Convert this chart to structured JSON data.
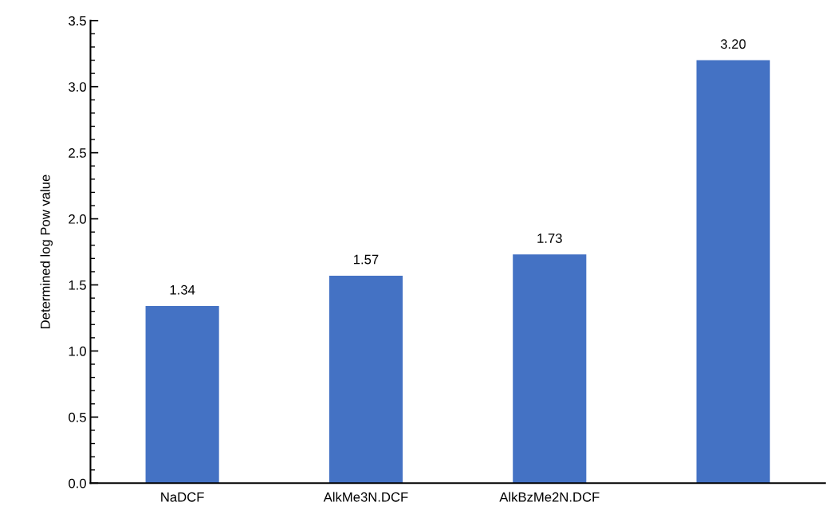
{
  "chart_data": {
    "type": "bar",
    "ylabel": "Determined log Pow value",
    "categories": [
      "NaDCF",
      "AlkMe3N.DCF",
      "AlkBzMe2N.DCF",
      null
    ],
    "values": [
      1.34,
      1.57,
      1.73,
      3.2
    ],
    "value_labels": [
      "1.34",
      "1.57",
      "1.73",
      "3.20"
    ],
    "color": "#4472c4",
    "ylim": [
      0,
      3.5
    ],
    "yticks": [
      {
        "value": 0,
        "label": "0.0"
      },
      {
        "value": 0.1,
        "label": null
      },
      {
        "value": 0.2,
        "label": null
      },
      {
        "value": 0.3,
        "label": null
      },
      {
        "value": 0.4,
        "label": null
      },
      {
        "value": 0.5,
        "label": "0.5"
      },
      {
        "value": 0.6,
        "label": null
      },
      {
        "value": 0.7,
        "label": null
      },
      {
        "value": 0.8,
        "label": null
      },
      {
        "value": 0.9,
        "label": null
      },
      {
        "value": 1.0,
        "label": "1.0"
      },
      {
        "value": 1.1,
        "label": null
      },
      {
        "value": 1.2,
        "label": null
      },
      {
        "value": 1.3,
        "label": null
      },
      {
        "value": 1.4,
        "label": null
      },
      {
        "value": 1.5,
        "label": "1.5"
      },
      {
        "value": 1.6,
        "label": null
      },
      {
        "value": 1.7,
        "label": null
      },
      {
        "value": 1.8,
        "label": null
      },
      {
        "value": 1.9,
        "label": null
      },
      {
        "value": 2.0,
        "label": "2.0"
      },
      {
        "value": 2.1,
        "label": null
      },
      {
        "value": 2.2,
        "label": null
      },
      {
        "value": 2.3,
        "label": null
      },
      {
        "value": 2.4,
        "label": null
      },
      {
        "value": 2.5,
        "label": "2.5"
      },
      {
        "value": 2.6,
        "label": null
      },
      {
        "value": 2.7,
        "label": null
      },
      {
        "value": 2.8,
        "label": null
      },
      {
        "value": 2.9,
        "label": null
      },
      {
        "value": 3.0,
        "label": "3.0"
      },
      {
        "value": 3.1,
        "label": null
      },
      {
        "value": 3.2,
        "label": null
      },
      {
        "value": 3.3,
        "label": null
      },
      {
        "value": 3.4,
        "label": null
      },
      {
        "value": 3.5,
        "label": "3.5"
      }
    ],
    "grid": false
  }
}
